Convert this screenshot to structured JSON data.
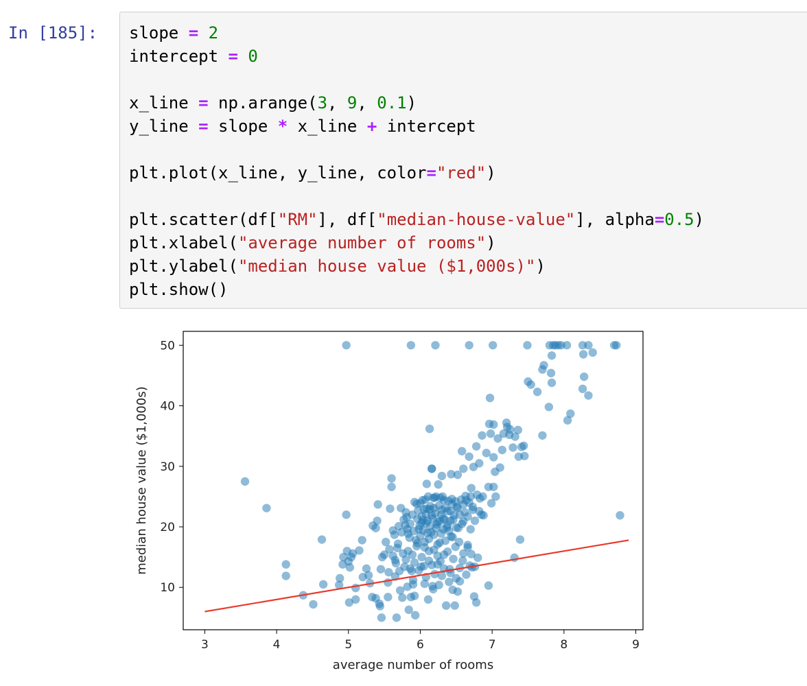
{
  "cell": {
    "prompt": "In [185]:",
    "code_lines": [
      [
        {
          "t": "slope "
        },
        {
          "t": "=",
          "c": "o"
        },
        {
          "t": " "
        },
        {
          "t": "2",
          "c": "n"
        }
      ],
      [
        {
          "t": "intercept "
        },
        {
          "t": "=",
          "c": "o"
        },
        {
          "t": " "
        },
        {
          "t": "0",
          "c": "n"
        }
      ],
      [],
      [
        {
          "t": "x_line "
        },
        {
          "t": "=",
          "c": "o"
        },
        {
          "t": " np.arange("
        },
        {
          "t": "3",
          "c": "n"
        },
        {
          "t": ", "
        },
        {
          "t": "9",
          "c": "n"
        },
        {
          "t": ", "
        },
        {
          "t": "0.1",
          "c": "n"
        },
        {
          "t": ")"
        }
      ],
      [
        {
          "t": "y_line "
        },
        {
          "t": "=",
          "c": "o"
        },
        {
          "t": " slope "
        },
        {
          "t": "*",
          "c": "o"
        },
        {
          "t": " x_line "
        },
        {
          "t": "+",
          "c": "o"
        },
        {
          "t": " intercept"
        }
      ],
      [],
      [
        {
          "t": "plt.plot(x_line, y_line, color"
        },
        {
          "t": "=",
          "c": "o"
        },
        {
          "t": "\"red\"",
          "c": "s"
        },
        {
          "t": ")"
        }
      ],
      [],
      [
        {
          "t": "plt.scatter(df["
        },
        {
          "t": "\"RM\"",
          "c": "s"
        },
        {
          "t": "], df["
        },
        {
          "t": "\"median-house-value\"",
          "c": "s"
        },
        {
          "t": "], alpha"
        },
        {
          "t": "=",
          "c": "o"
        },
        {
          "t": "0.5",
          "c": "n"
        },
        {
          "t": ")"
        }
      ],
      [
        {
          "t": "plt.xlabel("
        },
        {
          "t": "\"average number of rooms\"",
          "c": "s"
        },
        {
          "t": ")"
        }
      ],
      [
        {
          "t": "plt.ylabel("
        },
        {
          "t": "\"median house value ($1,000s)\"",
          "c": "s"
        },
        {
          "t": ")"
        }
      ],
      [
        {
          "t": "plt.show()"
        }
      ]
    ]
  },
  "chart_data": {
    "type": "scatter",
    "xlabel": "average number of rooms",
    "ylabel": "median house value ($1,000s)",
    "xlim": [
      2.7,
      9.1
    ],
    "ylim": [
      3.0,
      52.3
    ],
    "xticks": [
      3,
      4,
      5,
      6,
      7,
      8,
      9
    ],
    "yticks": [
      10,
      20,
      30,
      40,
      50
    ],
    "grid": false,
    "colors": {
      "points": "#1f77b4",
      "line": "#e8392b"
    },
    "point_alpha": 0.5,
    "line": {
      "name": "",
      "x": [
        3.0,
        8.9
      ],
      "y": [
        6.0,
        17.8
      ]
    },
    "points": [
      [
        4.97,
        50
      ],
      [
        5.87,
        50
      ],
      [
        6.21,
        50
      ],
      [
        6.68,
        50
      ],
      [
        7.01,
        50
      ],
      [
        7.49,
        50
      ],
      [
        7.8,
        50
      ],
      [
        7.85,
        50
      ],
      [
        7.88,
        50
      ],
      [
        7.92,
        50
      ],
      [
        7.96,
        50
      ],
      [
        8.04,
        50
      ],
      [
        8.26,
        50
      ],
      [
        8.34,
        50
      ],
      [
        8.7,
        50
      ],
      [
        8.73,
        50
      ],
      [
        7.83,
        48.3
      ],
      [
        8.27,
        48.5
      ],
      [
        8.4,
        48.8
      ],
      [
        7.7,
        46.0
      ],
      [
        7.72,
        46.7
      ],
      [
        7.82,
        45.4
      ],
      [
        7.83,
        43.8
      ],
      [
        8.28,
        44.8
      ],
      [
        8.26,
        42.8
      ],
      [
        8.34,
        41.7
      ],
      [
        7.5,
        44.0
      ],
      [
        7.54,
        43.5
      ],
      [
        7.63,
        42.3
      ],
      [
        6.97,
        41.3
      ],
      [
        7.79,
        39.8
      ],
      [
        8.05,
        37.6
      ],
      [
        8.09,
        38.7
      ],
      [
        7.7,
        35.1
      ],
      [
        7.2,
        37.2
      ],
      [
        7.21,
        36.5
      ],
      [
        7.25,
        36.1
      ],
      [
        7.16,
        35.4
      ],
      [
        7.24,
        35.2
      ],
      [
        7.36,
        36.0
      ],
      [
        7.41,
        33.2
      ],
      [
        7.44,
        33.4
      ],
      [
        7.32,
        34.9
      ],
      [
        7.45,
        31.7
      ],
      [
        7.37,
        31.6
      ],
      [
        7.29,
        33.1
      ],
      [
        6.86,
        35.1
      ],
      [
        6.98,
        35.4
      ],
      [
        6.96,
        37.0
      ],
      [
        7.02,
        36.9
      ],
      [
        6.78,
        33.3
      ],
      [
        7.08,
        34.6
      ],
      [
        7.14,
        32.7
      ],
      [
        6.68,
        31.6
      ],
      [
        6.58,
        32.5
      ],
      [
        6.92,
        32.2
      ],
      [
        7.02,
        31.5
      ],
      [
        6.82,
        30.5
      ],
      [
        6.74,
        29.9
      ],
      [
        7.11,
        29.8
      ],
      [
        7.04,
        29.1
      ],
      [
        6.6,
        29.6
      ],
      [
        6.52,
        28.6
      ],
      [
        6.43,
        28.7
      ],
      [
        6.3,
        28.4
      ],
      [
        6.16,
        29.6
      ],
      [
        7.02,
        26.6
      ],
      [
        6.95,
        26.6
      ],
      [
        6.87,
        25.0
      ],
      [
        6.99,
        23.9
      ],
      [
        6.85,
        22.0
      ],
      [
        7.05,
        25.0
      ],
      [
        6.7,
        25.0
      ],
      [
        6.88,
        21.9
      ],
      [
        6.13,
        36.2
      ],
      [
        3.56,
        27.5
      ],
      [
        3.86,
        23.1
      ],
      [
        4.13,
        13.8
      ],
      [
        4.13,
        11.9
      ],
      [
        4.37,
        8.7
      ],
      [
        4.51,
        7.2
      ],
      [
        4.63,
        17.9
      ],
      [
        4.65,
        10.5
      ],
      [
        4.87,
        10.4
      ],
      [
        4.88,
        11.5
      ],
      [
        4.92,
        13.8
      ],
      [
        4.93,
        15.0
      ],
      [
        4.97,
        22.0
      ],
      [
        4.98,
        16.0
      ],
      [
        5.0,
        14.3
      ],
      [
        5.01,
        7.5
      ],
      [
        5.02,
        13.3
      ],
      [
        5.04,
        15.0
      ],
      [
        5.06,
        15.6
      ],
      [
        5.1,
        8.0
      ],
      [
        5.15,
        16.1
      ],
      [
        5.19,
        17.8
      ],
      [
        5.25,
        13.1
      ],
      [
        5.28,
        12.0
      ],
      [
        5.33,
        8.4
      ],
      [
        5.34,
        20.2
      ],
      [
        5.38,
        19.8
      ],
      [
        5.4,
        21.0
      ],
      [
        5.41,
        23.7
      ],
      [
        5.43,
        7.3
      ],
      [
        5.45,
        13.0
      ],
      [
        5.46,
        5.0
      ],
      [
        5.47,
        15.0
      ],
      [
        5.5,
        15.4
      ],
      [
        5.55,
        8.4
      ],
      [
        5.56,
        12.5
      ],
      [
        5.58,
        23.0
      ],
      [
        5.6,
        28.0
      ],
      [
        5.6,
        26.6
      ],
      [
        5.62,
        19.4
      ],
      [
        5.64,
        18.7
      ],
      [
        5.65,
        14.5
      ],
      [
        5.67,
        5.0
      ],
      [
        5.69,
        17.2
      ],
      [
        5.73,
        23.1
      ],
      [
        5.75,
        8.3
      ],
      [
        5.78,
        13.4
      ],
      [
        5.79,
        20.3
      ],
      [
        5.81,
        21.6
      ],
      [
        5.83,
        18.9
      ],
      [
        5.84,
        6.3
      ],
      [
        5.87,
        8.4
      ],
      [
        5.88,
        12.7
      ],
      [
        5.9,
        10.5
      ],
      [
        5.92,
        8.6
      ],
      [
        5.93,
        5.4
      ],
      [
        5.95,
        23.8
      ],
      [
        5.96,
        17.3
      ],
      [
        5.99,
        20.2
      ],
      [
        6.01,
        13.4
      ],
      [
        6.03,
        24.4
      ],
      [
        6.04,
        21.1
      ],
      [
        6.06,
        16.6
      ],
      [
        6.08,
        20.6
      ],
      [
        6.09,
        27.1
      ],
      [
        6.11,
        8.0
      ],
      [
        6.12,
        14.4
      ],
      [
        6.13,
        22.9
      ],
      [
        6.15,
        19.1
      ],
      [
        6.16,
        29.6
      ],
      [
        6.17,
        10.2
      ],
      [
        6.19,
        16.2
      ],
      [
        6.2,
        24.8
      ],
      [
        6.23,
        20.4
      ],
      [
        6.24,
        13.8
      ],
      [
        6.25,
        27.0
      ],
      [
        6.27,
        17.4
      ],
      [
        6.29,
        22.0
      ],
      [
        6.3,
        11.9
      ],
      [
        6.31,
        25.0
      ],
      [
        6.33,
        15.4
      ],
      [
        6.34,
        21.2
      ],
      [
        6.36,
        7.0
      ],
      [
        6.38,
        22.6
      ],
      [
        6.4,
        19.3
      ],
      [
        6.41,
        13.0
      ],
      [
        6.43,
        18.4
      ],
      [
        6.44,
        24.6
      ],
      [
        6.45,
        9.6
      ],
      [
        6.47,
        21.9
      ],
      [
        6.48,
        7.0
      ],
      [
        6.49,
        16.7
      ],
      [
        6.51,
        23.3
      ],
      [
        6.53,
        19.8
      ],
      [
        6.55,
        11.0
      ],
      [
        6.58,
        20.5
      ],
      [
        6.59,
        14.4
      ],
      [
        6.62,
        22.4
      ],
      [
        6.64,
        24.4
      ],
      [
        6.66,
        17.0
      ],
      [
        6.69,
        13.6
      ],
      [
        6.71,
        15.5
      ],
      [
        6.73,
        22.8
      ],
      [
        6.75,
        8.5
      ],
      [
        6.76,
        13.4
      ],
      [
        6.78,
        7.5
      ],
      [
        6.8,
        14.9
      ],
      [
        6.83,
        24.7
      ],
      [
        6.95,
        10.3
      ],
      [
        7.31,
        14.9
      ],
      [
        7.39,
        17.9
      ],
      [
        8.78,
        21.9
      ],
      [
        6.72,
        13.3
      ],
      [
        6.7,
        19.6
      ],
      [
        5.92,
        24.1
      ],
      [
        5.97,
        22.7
      ],
      [
        6.0,
        23.9
      ],
      [
        6.02,
        21.7
      ],
      [
        6.05,
        22.9
      ],
      [
        6.07,
        24.5
      ],
      [
        6.09,
        23.0
      ],
      [
        6.1,
        21.0
      ],
      [
        6.11,
        25.0
      ],
      [
        6.14,
        23.4
      ],
      [
        6.16,
        21.9
      ],
      [
        6.18,
        24.8
      ],
      [
        6.19,
        23.1
      ],
      [
        6.21,
        22.2
      ],
      [
        6.22,
        25.0
      ],
      [
        6.24,
        20.8
      ],
      [
        6.26,
        23.5
      ],
      [
        6.28,
        24.8
      ],
      [
        6.3,
        22.8
      ],
      [
        6.32,
        21.4
      ],
      [
        6.33,
        24.4
      ],
      [
        6.35,
        23.1
      ],
      [
        6.37,
        19.9
      ],
      [
        6.39,
        24.3
      ],
      [
        6.42,
        22.6
      ],
      [
        6.44,
        23.8
      ],
      [
        6.46,
        21.2
      ],
      [
        6.49,
        24.2
      ],
      [
        6.52,
        23.1
      ],
      [
        6.55,
        22.0
      ],
      [
        6.57,
        24.5
      ],
      [
        6.6,
        23.7
      ],
      [
        6.63,
        25.1
      ],
      [
        6.66,
        21.7
      ],
      [
        6.68,
        24.0
      ],
      [
        6.71,
        26.4
      ],
      [
        6.73,
        23.3
      ],
      [
        6.76,
        21.0
      ],
      [
        6.79,
        25.3
      ],
      [
        6.82,
        22.6
      ],
      [
        5.7,
        20.1
      ],
      [
        5.74,
        19.1
      ],
      [
        5.77,
        21.2
      ],
      [
        5.8,
        22.4
      ],
      [
        5.82,
        19.6
      ],
      [
        5.85,
        18.2
      ],
      [
        5.86,
        20.5
      ],
      [
        5.89,
        22.0
      ],
      [
        5.91,
        19.3
      ],
      [
        5.94,
        17.8
      ],
      [
        5.96,
        21.3
      ],
      [
        5.98,
        19.6
      ],
      [
        6.0,
        18.5
      ],
      [
        6.02,
        20.7
      ],
      [
        6.04,
        19.4
      ],
      [
        6.06,
        17.5
      ],
      [
        6.08,
        22.1
      ],
      [
        6.1,
        19.0
      ],
      [
        6.12,
        18.0
      ],
      [
        6.14,
        20.1
      ],
      [
        6.17,
        21.4
      ],
      [
        6.19,
        18.7
      ],
      [
        6.22,
        19.8
      ],
      [
        6.24,
        17.1
      ],
      [
        6.27,
        20.9
      ],
      [
        6.29,
        18.9
      ],
      [
        6.32,
        19.6
      ],
      [
        6.35,
        17.7
      ],
      [
        6.38,
        20.3
      ],
      [
        6.42,
        21.0
      ],
      [
        6.45,
        18.3
      ],
      [
        6.5,
        19.9
      ],
      [
        6.54,
        17.5
      ],
      [
        6.6,
        20.9
      ],
      [
        6.66,
        16.6
      ],
      [
        5.52,
        17.5
      ],
      [
        5.57,
        16.3
      ],
      [
        5.62,
        15.2
      ],
      [
        5.66,
        14.0
      ],
      [
        5.68,
        16.5
      ],
      [
        5.71,
        12.7
      ],
      [
        5.76,
        15.6
      ],
      [
        5.8,
        14.6
      ],
      [
        5.83,
        16.0
      ],
      [
        5.86,
        13.1
      ],
      [
        5.89,
        15.4
      ],
      [
        5.92,
        14.1
      ],
      [
        5.95,
        16.8
      ],
      [
        5.98,
        12.8
      ],
      [
        6.02,
        15.0
      ],
      [
        6.05,
        13.5
      ],
      [
        6.08,
        11.7
      ],
      [
        6.12,
        16.0
      ],
      [
        6.16,
        13.7
      ],
      [
        6.2,
        12.2
      ],
      [
        6.24,
        15.2
      ],
      [
        6.28,
        14.3
      ],
      [
        6.33,
        13.1
      ],
      [
        6.38,
        15.9
      ],
      [
        6.42,
        12.4
      ],
      [
        6.46,
        14.7
      ],
      [
        6.5,
        11.5
      ],
      [
        6.55,
        13.2
      ],
      [
        6.6,
        15.6
      ],
      [
        6.64,
        12.1
      ],
      [
        5.55,
        10.8
      ],
      [
        5.65,
        11.8
      ],
      [
        5.72,
        9.5
      ],
      [
        5.82,
        10.1
      ],
      [
        5.9,
        11.2
      ],
      [
        6.06,
        10.6
      ],
      [
        6.18,
        9.7
      ],
      [
        6.26,
        10.4
      ],
      [
        6.4,
        10.9
      ],
      [
        6.52,
        9.3
      ],
      [
        5.3,
        10.7
      ],
      [
        5.2,
        11.7
      ],
      [
        5.1,
        9.9
      ],
      [
        5.38,
        8.2
      ],
      [
        5.44,
        6.9
      ]
    ]
  }
}
